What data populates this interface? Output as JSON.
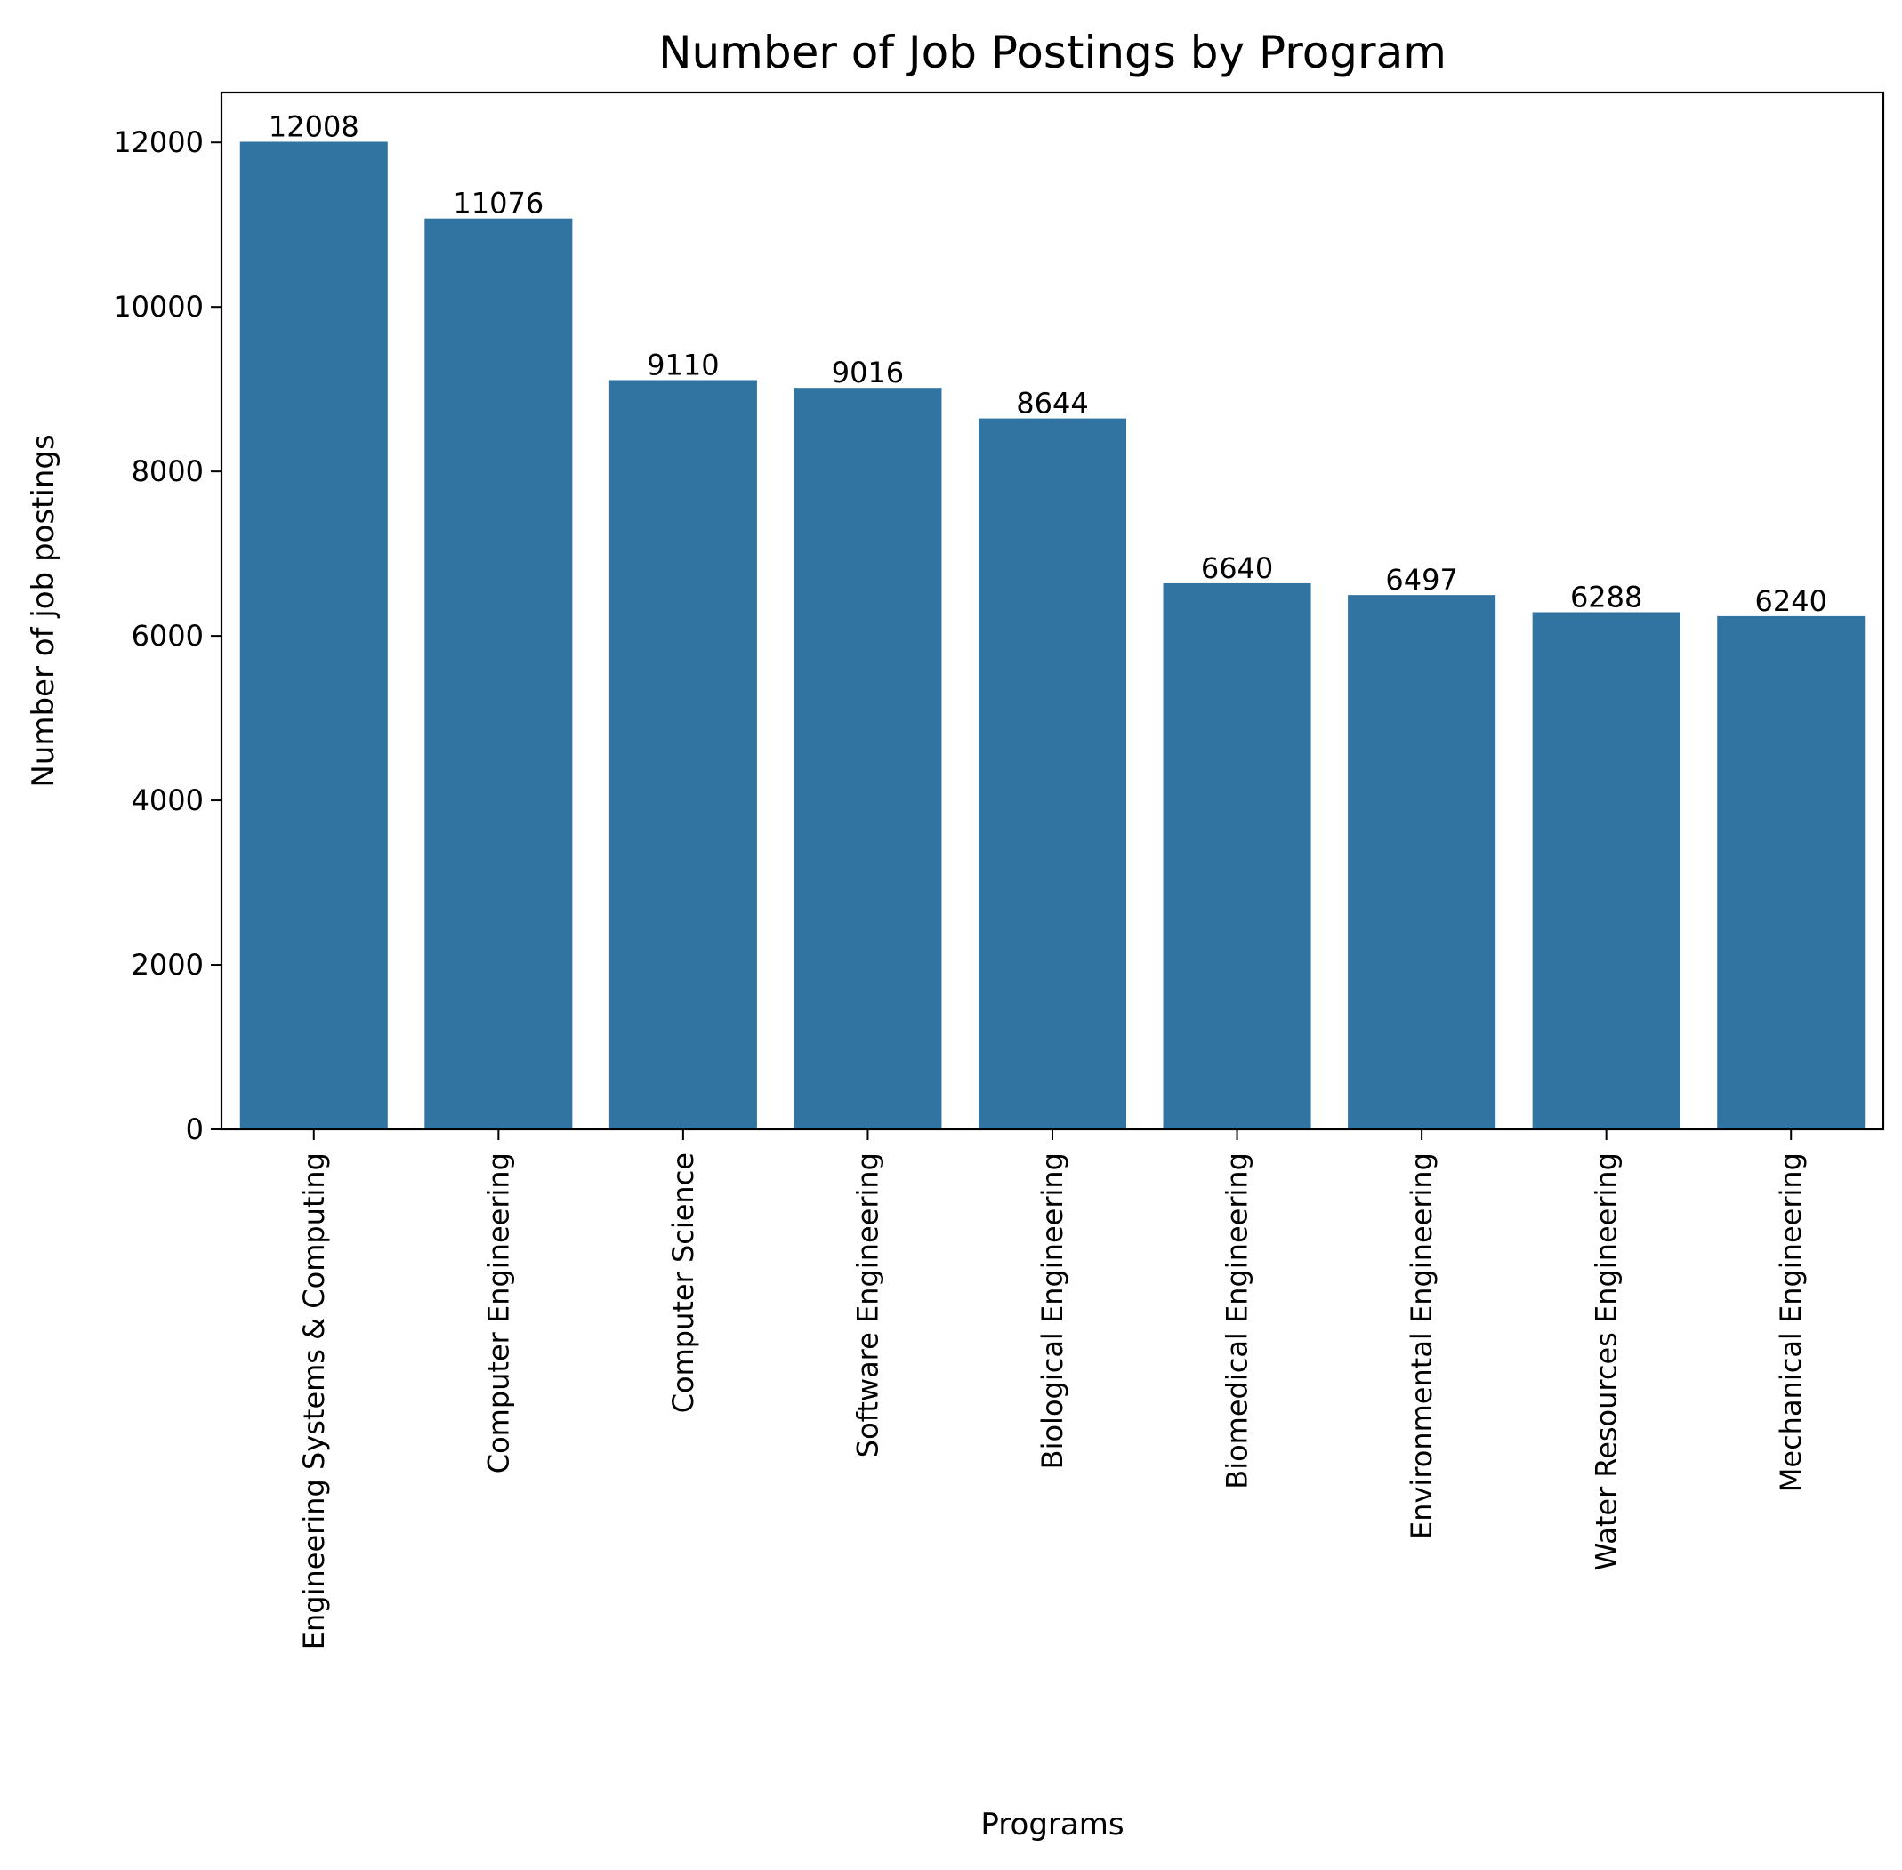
{
  "colors": {
    "bar": "#3274a1",
    "axis": "#000000",
    "background": "#ffffff"
  },
  "chart_data": {
    "type": "bar",
    "title": "Number of Job Postings by Program",
    "xlabel": "Programs",
    "ylabel": "Number of job postings",
    "categories": [
      "Engineering Systems & Computing",
      "Computer Engineering",
      "Computer Science",
      "Software Engineering",
      "Biological Engineering",
      "Biomedical Engineering",
      "Environmental Engineering",
      "Water Resources Engineering",
      "Mechanical Engineering"
    ],
    "values": [
      12008,
      11076,
      9110,
      9016,
      8644,
      6640,
      6497,
      6288,
      6240
    ],
    "data_labels": [
      "12008",
      "11076",
      "9110",
      "9016",
      "8644",
      "6640",
      "6497",
      "6288",
      "6240"
    ],
    "yticks": [
      0,
      2000,
      4000,
      6000,
      8000,
      10000,
      12000
    ],
    "ytick_labels": [
      "0",
      "2000",
      "4000",
      "6000",
      "8000",
      "10000",
      "12000"
    ],
    "ylim": [
      0,
      12608
    ],
    "grid": false,
    "legend": "none"
  }
}
